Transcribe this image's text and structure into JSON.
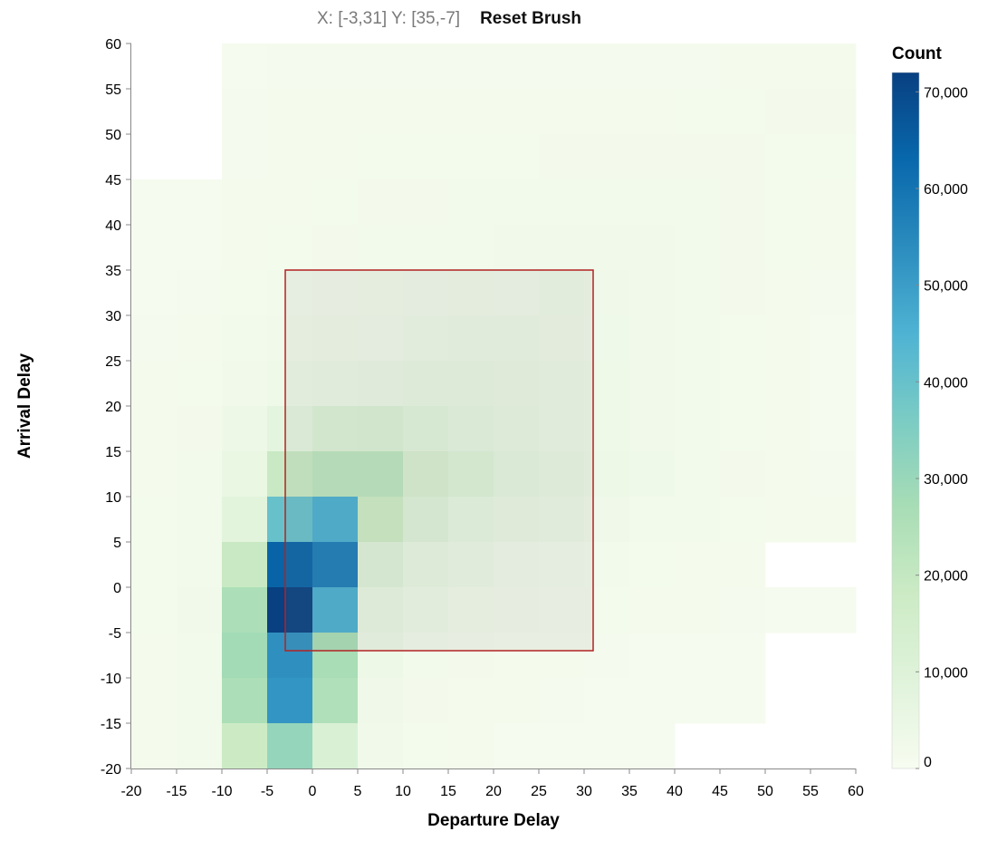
{
  "toolbar": {
    "brush_readout": "X: [-3,31] Y: [35,-7]",
    "reset_label": "Reset Brush"
  },
  "chart_data": {
    "type": "heatmap",
    "xlabel": "Departure Delay",
    "ylabel": "Arrival Delay",
    "xlim": [
      -20,
      60
    ],
    "ylim": [
      -20,
      60
    ],
    "bin_size": 5,
    "x_ticks": [
      -20,
      -15,
      -10,
      -5,
      0,
      5,
      10,
      15,
      20,
      25,
      30,
      35,
      40,
      45,
      50,
      55,
      60
    ],
    "y_ticks": [
      -20,
      -15,
      -10,
      -5,
      0,
      5,
      10,
      15,
      20,
      25,
      30,
      35,
      40,
      45,
      50,
      55,
      60
    ],
    "x_tick_labels": [
      "-20",
      "-15",
      "-10",
      "-5",
      "0",
      "5",
      "10",
      "15",
      "20",
      "25",
      "30",
      "35",
      "40",
      "45",
      "50",
      "55",
      "60"
    ],
    "y_tick_labels": [
      "-20",
      "-15",
      "-10",
      "-5",
      "0",
      "5",
      "10",
      "15",
      "20",
      "25",
      "30",
      "35",
      "40",
      "45",
      "50",
      "55",
      "60"
    ],
    "legend": {
      "title": "Count",
      "min": 0,
      "max": 72000,
      "ticks": [
        0,
        10000,
        20000,
        30000,
        40000,
        50000,
        60000,
        70000
      ],
      "tick_labels": [
        "0",
        "10,000",
        "20,000",
        "30,000",
        "40,000",
        "50,000",
        "60,000",
        "70,000"
      ],
      "placement": "right",
      "colors": [
        "#f7fcf0",
        "#e0f3db",
        "#ccebc5",
        "#a8ddb5",
        "#7bccc4",
        "#4eb3d3",
        "#2b8cbe",
        "#0868ac",
        "#084081"
      ]
    },
    "brush": {
      "x": [
        -3,
        31
      ],
      "y": [
        35,
        -7
      ],
      "stroke": "#b22222"
    },
    "x_bins": [
      -20,
      -15,
      -10,
      -5,
      0,
      5,
      10,
      15,
      20,
      25,
      30,
      35,
      40,
      45,
      50,
      55
    ],
    "y_bins": [
      55,
      50,
      45,
      40,
      35,
      30,
      25,
      20,
      15,
      10,
      5,
      0,
      -5,
      -10,
      -15,
      -20
    ],
    "counts": [
      [
        null,
        null,
        900,
        1000,
        1000,
        1000,
        1000,
        1000,
        1000,
        1000,
        1000,
        1000,
        1000,
        1200,
        1200,
        1300
      ],
      [
        null,
        null,
        1000,
        1100,
        1100,
        1100,
        1100,
        1100,
        1200,
        1200,
        1300,
        1300,
        1400,
        1500,
        1600,
        1700
      ],
      [
        null,
        null,
        1000,
        1200,
        1300,
        1400,
        1400,
        1400,
        1500,
        1600,
        1700,
        1700,
        1700,
        1600,
        1500,
        1400
      ],
      [
        600,
        600,
        1100,
        1300,
        1500,
        1600,
        1700,
        1800,
        1800,
        1900,
        2000,
        2200,
        2000,
        1700,
        1500,
        1300
      ],
      [
        700,
        800,
        1200,
        1500,
        1700,
        1900,
        2100,
        2200,
        2400,
        2500,
        2700,
        2500,
        2100,
        1700,
        1400,
        1200
      ],
      [
        900,
        1000,
        1500,
        1800,
        2100,
        2400,
        2600,
        2900,
        3100,
        3400,
        2900,
        2500,
        2000,
        1700,
        1300,
        1000
      ],
      [
        1000,
        1200,
        1900,
        2400,
        2800,
        3100,
        3500,
        3900,
        4300,
        3700,
        3100,
        2500,
        2000,
        1500,
        1200,
        900
      ],
      [
        1100,
        1400,
        2600,
        3400,
        4200,
        4800,
        5500,
        6000,
        5000,
        4200,
        3400,
        2700,
        2000,
        1500,
        1200,
        900
      ],
      [
        1200,
        1600,
        3800,
        7500,
        11000,
        11500,
        8500,
        7000,
        5500,
        4500,
        3500,
        2700,
        2000,
        1500,
        1200,
        900
      ],
      [
        1300,
        1800,
        5500,
        19000,
        22000,
        22000,
        13000,
        10500,
        7500,
        5500,
        4000,
        3000,
        2200,
        1600,
        1300,
        1000
      ],
      [
        1400,
        2000,
        8000,
        40000,
        46000,
        18000,
        10000,
        6500,
        5000,
        3800,
        2800,
        2200,
        1800,
        1500,
        1200,
        1100
      ],
      [
        1400,
        2200,
        19000,
        64000,
        58000,
        10000,
        6000,
        4000,
        3000,
        2300,
        1800,
        1500,
        1300,
        1200,
        null,
        null
      ],
      [
        1500,
        2500,
        26000,
        72000,
        46000,
        5500,
        3500,
        2500,
        2000,
        1600,
        1400,
        1200,
        1100,
        1000,
        900,
        800
      ],
      [
        1300,
        2200,
        28000,
        53000,
        27000,
        3800,
        2200,
        1600,
        1300,
        1100,
        1000,
        900,
        800,
        800,
        null,
        null
      ],
      [
        1200,
        2100,
        26000,
        52000,
        25000,
        2800,
        1600,
        1300,
        1100,
        1000,
        900,
        800,
        700,
        600,
        null,
        null
      ],
      [
        1100,
        2300,
        18000,
        31000,
        12000,
        2600,
        1400,
        1100,
        900,
        800,
        700,
        600,
        null,
        null,
        null,
        null
      ]
    ]
  }
}
